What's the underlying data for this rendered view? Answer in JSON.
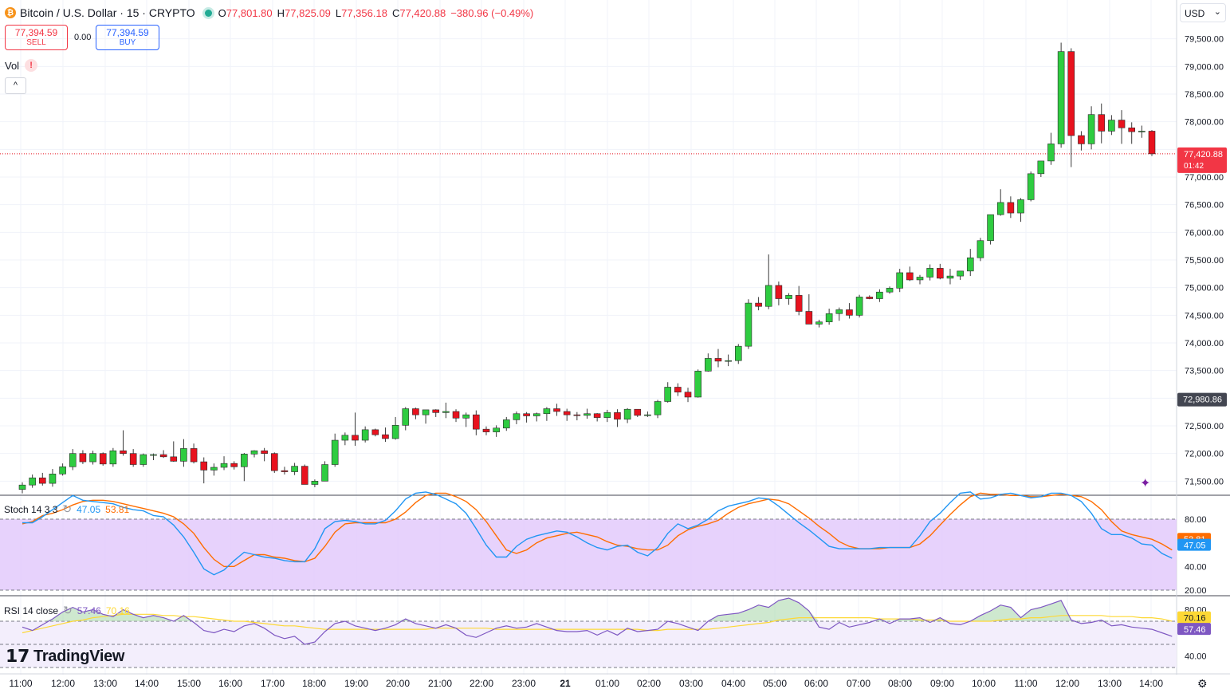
{
  "header": {
    "title": "Bitcoin / U.S. Dollar · 15 · CRYPTO",
    "coin_glyph": "₿",
    "ohlc": [
      {
        "k": "O",
        "v": "77,801.80"
      },
      {
        "k": "H",
        "v": "77,825.09"
      },
      {
        "k": "L",
        "v": "77,356.18"
      },
      {
        "k": "C",
        "v": "77,420.88"
      },
      {
        "k": "",
        "v": "−380.96 (−0.49%)"
      }
    ]
  },
  "trade": {
    "sell_price": "77,394.59",
    "sell_label": "SELL",
    "spread": "0.00",
    "buy_price": "77,394.59",
    "buy_label": "BUY"
  },
  "vol_label": "Vol",
  "currency": "USD",
  "indicators": {
    "stoch": {
      "label": "Stoch 14 3 3",
      "k": "47.05",
      "d": "53.81"
    },
    "rsi": {
      "label": "RSI 14 close",
      "rsi": "57.46",
      "ma": "70.16"
    }
  },
  "brand": "TradingView",
  "colors": {
    "up": "#2ecc40",
    "down": "#e8121e",
    "stoch_k": "#2196f3",
    "stoch_d": "#ff6d00",
    "rsi": "#7e57c2",
    "rsi_ma": "#fdd835"
  },
  "chart_data": {
    "type": "candlestick",
    "interval": "15m",
    "price_axis": {
      "ticks": [
        "79,500.00",
        "79,000.00",
        "78,500.00",
        "78,000.00",
        "77,000.00",
        "76,500.00",
        "76,000.00",
        "75,500.00",
        "75,000.00",
        "74,500.00",
        "74,000.00",
        "73,500.00",
        "72,500.00",
        "72,000.00",
        "71,500.00"
      ]
    },
    "last_price_label": "77,420.88",
    "countdown_label": "01:42",
    "marker_label": "72,980.86",
    "marker_price": 72980.86,
    "x_ticks": [
      "11:00",
      "12:00",
      "13:00",
      "14:00",
      "15:00",
      "16:00",
      "17:00",
      "18:00",
      "19:00",
      "20:00",
      "21:00",
      "22:00",
      "23:00",
      "21",
      "01:00",
      "02:00",
      "03:00",
      "04:00",
      "05:00",
      "06:00",
      "07:00",
      "08:00",
      "09:00",
      "10:00",
      "11:00",
      "12:00",
      "13:00",
      "14:00"
    ],
    "candles": [
      [
        71350,
        71480,
        71280,
        71430
      ],
      [
        71430,
        71620,
        71380,
        71560
      ],
      [
        71560,
        71650,
        71420,
        71460
      ],
      [
        71460,
        71720,
        71400,
        71630
      ],
      [
        71630,
        71820,
        71600,
        71760
      ],
      [
        71760,
        72080,
        71700,
        72000
      ],
      [
        72000,
        72060,
        71810,
        71850
      ],
      [
        71850,
        72050,
        71800,
        72000
      ],
      [
        72000,
        72020,
        71780,
        71810
      ],
      [
        71810,
        72100,
        71760,
        72050
      ],
      [
        72050,
        72420,
        71960,
        72000
      ],
      [
        72000,
        72080,
        71760,
        71800
      ],
      [
        71800,
        72000,
        71760,
        71980
      ],
      [
        71980,
        72000,
        71880,
        71980
      ],
      [
        71980,
        72060,
        71920,
        71940
      ],
      [
        71940,
        72220,
        71850,
        71860
      ],
      [
        71860,
        72260,
        71760,
        72090
      ],
      [
        72090,
        72180,
        71820,
        71850
      ],
      [
        71850,
        71930,
        71460,
        71700
      ],
      [
        71700,
        71820,
        71600,
        71750
      ],
      [
        71750,
        71950,
        71700,
        71820
      ],
      [
        71820,
        71860,
        71710,
        71760
      ],
      [
        71760,
        72010,
        71500,
        71990
      ],
      [
        71990,
        72060,
        71930,
        72050
      ],
      [
        72050,
        72100,
        71860,
        72000
      ],
      [
        72000,
        72020,
        71650,
        71690
      ],
      [
        71690,
        71760,
        71620,
        71670
      ],
      [
        71670,
        71830,
        71610,
        71770
      ],
      [
        71770,
        71800,
        71450,
        71440
      ],
      [
        71440,
        71530,
        71390,
        71500
      ],
      [
        71500,
        71860,
        71500,
        71800
      ],
      [
        71800,
        72360,
        71760,
        72240
      ],
      [
        72240,
        72380,
        72150,
        72330
      ],
      [
        72330,
        72740,
        72140,
        72240
      ],
      [
        72240,
        72490,
        72200,
        72430
      ],
      [
        72430,
        72450,
        72310,
        72340
      ],
      [
        72340,
        72470,
        72210,
        72270
      ],
      [
        72270,
        72660,
        72250,
        72510
      ],
      [
        72510,
        72840,
        72420,
        72810
      ],
      [
        72810,
        72830,
        72620,
        72700
      ],
      [
        72700,
        72760,
        72540,
        72790
      ],
      [
        72790,
        72800,
        72660,
        72740
      ],
      [
        72740,
        72920,
        72640,
        72760
      ],
      [
        72760,
        72800,
        72570,
        72640
      ],
      [
        72640,
        72740,
        72480,
        72700
      ],
      [
        72700,
        72780,
        72330,
        72440
      ],
      [
        72440,
        72490,
        72330,
        72390
      ],
      [
        72390,
        72510,
        72300,
        72460
      ],
      [
        72460,
        72660,
        72410,
        72610
      ],
      [
        72610,
        72760,
        72530,
        72720
      ],
      [
        72720,
        72750,
        72560,
        72680
      ],
      [
        72680,
        72740,
        72580,
        72720
      ],
      [
        72720,
        72840,
        72590,
        72810
      ],
      [
        72810,
        72900,
        72680,
        72760
      ],
      [
        72760,
        72810,
        72590,
        72700
      ],
      [
        72700,
        72750,
        72600,
        72690
      ],
      [
        72690,
        72810,
        72630,
        72720
      ],
      [
        72720,
        72730,
        72580,
        72650
      ],
      [
        72650,
        72790,
        72570,
        72740
      ],
      [
        72740,
        72800,
        72480,
        72620
      ],
      [
        72620,
        72820,
        72550,
        72800
      ],
      [
        72800,
        72800,
        72660,
        72690
      ],
      [
        72690,
        72760,
        72660,
        72700
      ],
      [
        72700,
        72970,
        72640,
        72940
      ],
      [
        72940,
        73290,
        72920,
        73200
      ],
      [
        73200,
        73270,
        73040,
        73110
      ],
      [
        73110,
        73190,
        72930,
        73020
      ],
      [
        73020,
        73520,
        73010,
        73490
      ],
      [
        73490,
        73810,
        73480,
        73720
      ],
      [
        73720,
        73890,
        73560,
        73670
      ],
      [
        73670,
        73790,
        73580,
        73680
      ],
      [
        73680,
        73980,
        73620,
        73940
      ],
      [
        73940,
        74790,
        73890,
        74720
      ],
      [
        74720,
        74830,
        74590,
        74660
      ],
      [
        74660,
        75600,
        74610,
        75040
      ],
      [
        75040,
        75110,
        74680,
        74800
      ],
      [
        74800,
        74900,
        74690,
        74860
      ],
      [
        74860,
        75030,
        74500,
        74570
      ],
      [
        74570,
        74880,
        74350,
        74340
      ],
      [
        74340,
        74420,
        74280,
        74380
      ],
      [
        74380,
        74620,
        74330,
        74530
      ],
      [
        74530,
        74640,
        74400,
        74600
      ],
      [
        74600,
        74720,
        74440,
        74500
      ],
      [
        74500,
        74870,
        74460,
        74830
      ],
      [
        74830,
        74860,
        74790,
        74800
      ],
      [
        74800,
        74970,
        74740,
        74920
      ],
      [
        74920,
        75020,
        74890,
        74990
      ],
      [
        74990,
        75340,
        74920,
        75270
      ],
      [
        75270,
        75380,
        75120,
        75140
      ],
      [
        75140,
        75230,
        75060,
        75190
      ],
      [
        75190,
        75420,
        75130,
        75350
      ],
      [
        75350,
        75430,
        75150,
        75170
      ],
      [
        75170,
        75340,
        75060,
        75210
      ],
      [
        75210,
        75300,
        75140,
        75300
      ],
      [
        75300,
        75700,
        75210,
        75540
      ],
      [
        75540,
        75900,
        75480,
        75850
      ],
      [
        75850,
        76320,
        75780,
        76320
      ],
      [
        76320,
        76780,
        76300,
        76540
      ],
      [
        76540,
        76650,
        76260,
        76350
      ],
      [
        76350,
        76620,
        76190,
        76590
      ],
      [
        76590,
        77100,
        76560,
        77060
      ],
      [
        77060,
        77250,
        77000,
        77290
      ],
      [
        77290,
        77800,
        77220,
        77600
      ],
      [
        77600,
        79430,
        77530,
        79270
      ],
      [
        79270,
        79330,
        77180,
        77750
      ],
      [
        77750,
        77830,
        77480,
        77600
      ],
      [
        77600,
        78280,
        77500,
        78130
      ],
      [
        78130,
        78330,
        77610,
        77830
      ],
      [
        77830,
        78120,
        77760,
        78030
      ],
      [
        78030,
        78210,
        77600,
        77890
      ],
      [
        77890,
        77990,
        77600,
        77820
      ],
      [
        77820,
        77930,
        77710,
        77830
      ],
      [
        77830,
        77850,
        77380,
        77420
      ]
    ],
    "stoch": {
      "range": [
        0,
        100
      ],
      "levels": [
        80,
        20
      ],
      "k": [
        77,
        77,
        82,
        88,
        94,
        100,
        96,
        95,
        94,
        93,
        90,
        88,
        87,
        83,
        82,
        75,
        65,
        52,
        38,
        33,
        37,
        45,
        52,
        50,
        48,
        47,
        45,
        44,
        44,
        55,
        72,
        78,
        79,
        78,
        76,
        76,
        79,
        87,
        97,
        102,
        103,
        101,
        97,
        93,
        85,
        72,
        58,
        48,
        48,
        57,
        63,
        66,
        68,
        70,
        69,
        65,
        60,
        56,
        54,
        57,
        58,
        52,
        49,
        56,
        68,
        76,
        72,
        75,
        80,
        87,
        91,
        93,
        95,
        98,
        97,
        91,
        84,
        77,
        71,
        64,
        57,
        55,
        55,
        55,
        55,
        56,
        56,
        56,
        56,
        66,
        78,
        85,
        94,
        102,
        103,
        97,
        98,
        101,
        102,
        100,
        98,
        99,
        102,
        102,
        100,
        95,
        85,
        72,
        67,
        67,
        64,
        59,
        58,
        51,
        47
      ],
      "d": [
        76,
        78,
        83,
        85,
        88,
        92,
        95,
        96,
        96,
        95,
        93,
        91,
        89,
        87,
        85,
        82,
        76,
        68,
        56,
        46,
        40,
        40,
        45,
        50,
        50,
        48,
        47,
        45,
        44,
        47,
        57,
        69,
        76,
        77,
        77,
        77,
        77,
        80,
        86,
        94,
        100,
        102,
        102,
        99,
        95,
        88,
        78,
        66,
        54,
        51,
        54,
        60,
        64,
        66,
        68,
        69,
        67,
        65,
        61,
        58,
        57,
        55,
        54,
        54,
        58,
        66,
        71,
        74,
        76,
        79,
        85,
        90,
        93,
        95,
        97,
        96,
        93,
        87,
        81,
        74,
        68,
        61,
        57,
        55,
        55,
        55,
        56,
        56,
        56,
        59,
        66,
        75,
        84,
        92,
        99,
        102,
        101,
        101,
        100,
        100,
        99,
        99,
        100,
        101,
        100,
        99,
        95,
        88,
        78,
        70,
        67,
        65,
        63,
        59,
        54
      ]
    },
    "rsi": {
      "range": [
        30,
        100
      ],
      "levels": [
        70,
        50,
        30
      ],
      "rsi": [
        65,
        62,
        67,
        72,
        78,
        82,
        78,
        80,
        76,
        74,
        80,
        76,
        73,
        75,
        73,
        70,
        75,
        69,
        62,
        60,
        63,
        61,
        66,
        68,
        64,
        58,
        55,
        57,
        50,
        52,
        61,
        68,
        70,
        66,
        64,
        62,
        64,
        67,
        72,
        68,
        66,
        64,
        67,
        64,
        58,
        56,
        60,
        64,
        66,
        64,
        65,
        68,
        65,
        62,
        61,
        61,
        62,
        58,
        62,
        58,
        64,
        61,
        62,
        63,
        70,
        68,
        65,
        62,
        70,
        75,
        76,
        77,
        80,
        84,
        82,
        88,
        90,
        86,
        79,
        65,
        63,
        69,
        65,
        67,
        69,
        72,
        68,
        72,
        72,
        73,
        69,
        73,
        68,
        67,
        70,
        75,
        79,
        84,
        82,
        73,
        80,
        82,
        85,
        88,
        71,
        68,
        69,
        71,
        66,
        67,
        65,
        64,
        63,
        60,
        57
      ],
      "ma": [
        60,
        62,
        64,
        66,
        68,
        70,
        71,
        73,
        74,
        75,
        76,
        76,
        76,
        76,
        75,
        75,
        74,
        74,
        73,
        72,
        71,
        70,
        70,
        69,
        68,
        67,
        66,
        66,
        65,
        64,
        63,
        63,
        63,
        63,
        63,
        63,
        63,
        63,
        63,
        63,
        63,
        64,
        64,
        64,
        64,
        64,
        64,
        63,
        63,
        63,
        63,
        63,
        63,
        63,
        63,
        63,
        63,
        63,
        63,
        63,
        63,
        63,
        62,
        62,
        63,
        63,
        63,
        63,
        63,
        64,
        65,
        66,
        67,
        68,
        69,
        71,
        72,
        73,
        73,
        73,
        73,
        73,
        73,
        73,
        73,
        72,
        72,
        72,
        72,
        71,
        71,
        71,
        70,
        70,
        70,
        70,
        70,
        71,
        72,
        72,
        73,
        73,
        74,
        75,
        75,
        75,
        75,
        75,
        74,
        74,
        74,
        73,
        73,
        72,
        70
      ]
    }
  }
}
